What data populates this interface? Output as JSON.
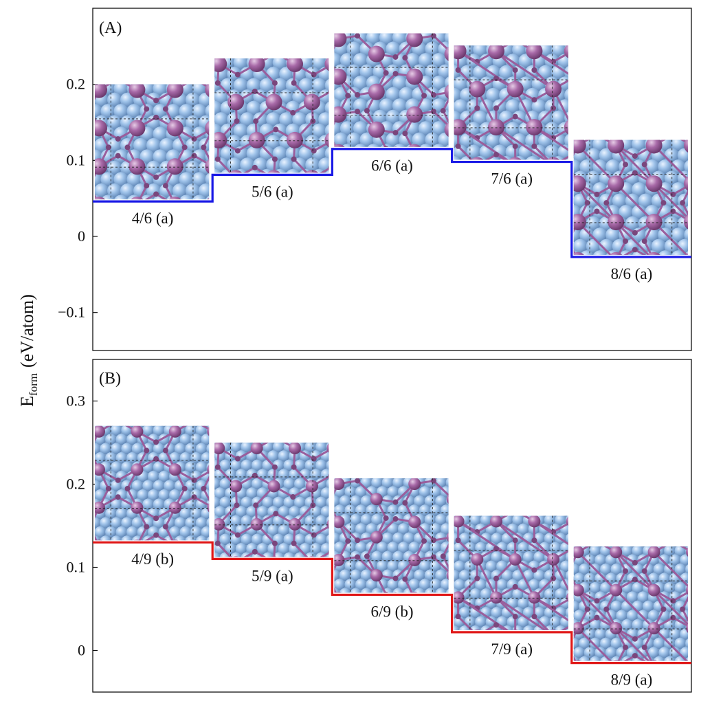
{
  "figure": {
    "ylabel_main": "E",
    "ylabel_sub": "form",
    "ylabel_unit": "(eV/atom)"
  },
  "chart_data": [
    {
      "type": "step",
      "panel_label": "(A)",
      "ylim": [
        -0.15,
        0.3
      ],
      "yticks": [
        -0.1,
        0,
        0.1,
        0.2
      ],
      "ytick_labels": [
        "−0.1",
        "0",
        "0.1",
        "0.2"
      ],
      "color": "#1a1ae6",
      "categories": [
        "4/6 (a)",
        "5/6 (a)",
        "6/6 (a)",
        "7/6 (a)",
        "8/6 (a)"
      ],
      "values": [
        0.046,
        0.081,
        0.115,
        0.098,
        -0.027
      ],
      "inset_heights": [
        0.154,
        0.153,
        0.152,
        0.153,
        0.154
      ],
      "inset_styles": [
        "rect",
        "oblique",
        "zigzag",
        "triangle",
        "square"
      ]
    },
    {
      "type": "step",
      "panel_label": "(B)",
      "ylim": [
        -0.05,
        0.35
      ],
      "yticks": [
        0,
        0.1,
        0.2,
        0.3
      ],
      "ytick_labels": [
        "0",
        "0.1",
        "0.2",
        "0.3"
      ],
      "color": "#e01818",
      "categories": [
        "4/9 (b)",
        "5/9 (a)",
        "6/9 (b)",
        "7/9 (a)",
        "8/9 (a)"
      ],
      "values": [
        0.13,
        0.11,
        0.067,
        0.022,
        -0.015
      ],
      "inset_heights": [
        0.14,
        0.14,
        0.14,
        0.14,
        0.14
      ],
      "inset_styles": [
        "rect",
        "oblique",
        "zigzag",
        "triangle",
        "square"
      ]
    }
  ]
}
